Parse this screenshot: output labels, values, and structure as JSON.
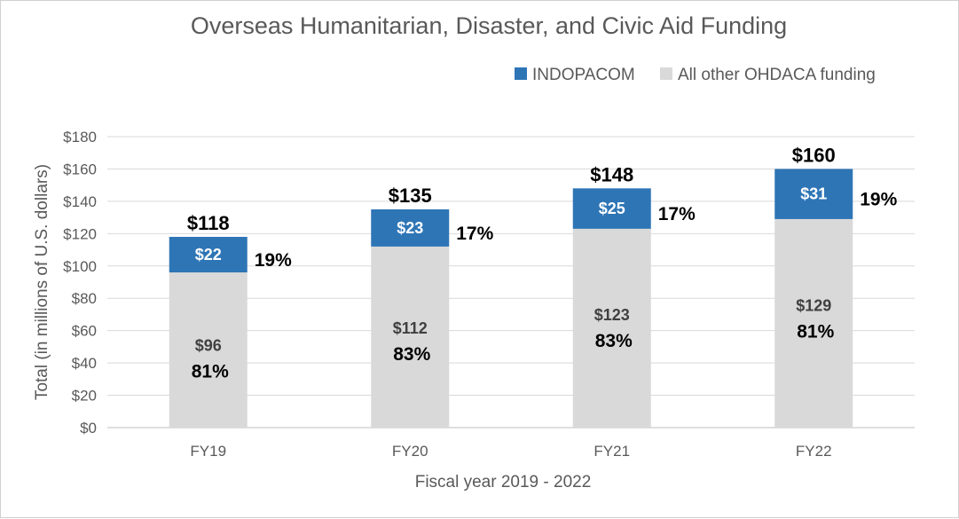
{
  "chart_data": {
    "type": "bar",
    "stacked": true,
    "title": "Overseas Humanitarian, Disaster, and Civic Aid Funding",
    "xlabel": "Fiscal year 2019 - 2022",
    "ylabel": "Total (in millions of U.S. dollars)",
    "ylim": [
      0,
      180
    ],
    "yticks": [
      "$0",
      "$20",
      "$40",
      "$60",
      "$80",
      "$100",
      "$120",
      "$140",
      "$160",
      "$180"
    ],
    "grid": true,
    "legend": "top-right",
    "categories": [
      "FY19",
      "FY20",
      "FY21",
      "FY22"
    ],
    "series": [
      {
        "name": "All other OHDACA funding",
        "values": [
          96,
          112,
          123,
          129
        ],
        "labels": [
          "$96",
          "$112",
          "$123",
          "$129"
        ],
        "pct_labels": [
          "81%",
          "83%",
          "83%",
          "81%"
        ],
        "color": "#D9D9D9"
      },
      {
        "name": "INDOPACOM",
        "values": [
          22,
          23,
          25,
          31
        ],
        "labels": [
          "$22",
          "$23",
          "$25",
          "$31"
        ],
        "pct_labels": [
          "19%",
          "17%",
          "17%",
          "19%"
        ],
        "color": "#2E75B6"
      }
    ],
    "totals": [
      "$118",
      "$135",
      "$148",
      "$160"
    ]
  }
}
